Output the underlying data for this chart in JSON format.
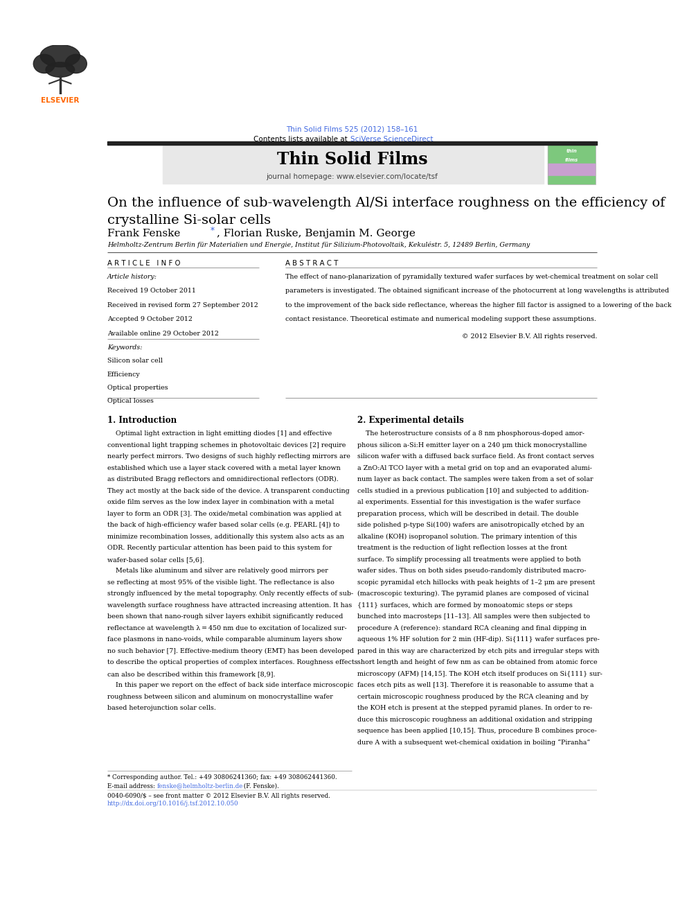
{
  "page_width": 9.92,
  "page_height": 13.23,
  "bg_color": "#ffffff",
  "top_citation": "Thin Solid Films 525 (2012) 158–161",
  "citation_color": "#4169E1",
  "journal_name": "Thin Solid Films",
  "journal_homepage": "journal homepage: www.elsevier.com/locate/tsf",
  "header_bg": "#e8e8e8",
  "paper_title": "On the influence of sub-wavelength Al/Si interface roughness on the efficiency of\ncrystalline Si-solar cells",
  "affiliation": "Helmholtz-Zentrum Berlin für Materialien und Energie, Institut für Silizium-Photovoltaik, Kekuléstr. 5, 12489 Berlin, Germany",
  "article_info_header": "A R T I C L E   I N F O",
  "abstract_header": "A B S T R A C T",
  "article_history_label": "Article history:",
  "received1": "Received 19 October 2011",
  "received2": "Received in revised form 27 September 2012",
  "accepted": "Accepted 9 October 2012",
  "available": "Available online 29 October 2012",
  "keywords_label": "Keywords:",
  "keywords": [
    "Silicon solar cell",
    "Efficiency",
    "Optical properties",
    "Optical losses"
  ],
  "abstract_text": "The effect of nano-planarization of pyramidally textured wafer surfaces by wet-chemical treatment on solar cell parameters is investigated. The obtained significant increase of the photocurrent at long wavelengths is attributed to the improvement of the back side reflectance, whereas the higher fill factor is assigned to a lowering of the back contact resistance. Theoretical estimate and numerical modeling support these assumptions.",
  "copyright": "© 2012 Elsevier B.V. All rights reserved.",
  "intro_heading": "1. Introduction",
  "exp_heading": "2. Experimental details",
  "footer_text1": "* Corresponding author. Tel.: +49 30806241360; fax: +49 308062441360.",
  "footer_text3": "0040-6090/$ – see front matter © 2012 Elsevier B.V. All rights reserved.",
  "footer_doi": "http://dx.doi.org/10.1016/j.tsf.2012.10.050",
  "footer_doi_color": "#4169E1",
  "elsevier_orange": "#FF6600",
  "blue_link": "#4169E1",
  "intro_lines": [
    "    Optimal light extraction in light emitting diodes [1] and effective",
    "conventional light trapping schemes in photovoltaic devices [2] require",
    "nearly perfect mirrors. Two designs of such highly reflecting mirrors are",
    "established which use a layer stack covered with a metal layer known",
    "as distributed Bragg reflectors and omnidirectional reflectors (ODR).",
    "They act mostly at the back side of the device. A transparent conducting",
    "oxide film serves as the low index layer in combination with a metal",
    "layer to form an ODR [3]. The oxide/metal combination was applied at",
    "the back of high-efficiency wafer based solar cells (e.g. PEARL [4]) to",
    "minimize recombination losses, additionally this system also acts as an",
    "ODR. Recently particular attention has been paid to this system for",
    "wafer-based solar cells [5,6].",
    "    Metals like aluminum and silver are relatively good mirrors per",
    "se reflecting at most 95% of the visible light. The reflectance is also",
    "strongly influenced by the metal topography. Only recently effects of sub-",
    "wavelength surface roughness have attracted increasing attention. It has",
    "been shown that nano-rough silver layers exhibit significantly reduced",
    "reflectance at wavelength λ = 450 nm due to excitation of localized sur-",
    "face plasmons in nano-voids, while comparable aluminum layers show",
    "no such behavior [7]. Effective-medium theory (EMT) has been developed",
    "to describe the optical properties of complex interfaces. Roughness effects",
    "can also be described within this framework [8,9].",
    "    In this paper we report on the effect of back side interface microscopic",
    "roughness between silicon and aluminum on monocrystalline wafer",
    "based heterojunction solar cells."
  ],
  "exp_lines": [
    "    The heterostructure consists of a 8 nm phosphorous-doped amor-",
    "phous silicon a-Si:H emitter layer on a 240 μm thick monocrystalline",
    "silicon wafer with a diffused back surface field. As front contact serves",
    "a ZnO:Al TCO layer with a metal grid on top and an evaporated alumi-",
    "num layer as back contact. The samples were taken from a set of solar",
    "cells studied in a previous publication [10] and subjected to addition-",
    "al experiments. Essential for this investigation is the wafer surface",
    "preparation process, which will be described in detail. The double",
    "side polished p-type Si(100) wafers are anisotropically etched by an",
    "alkaline (KOH) isopropanol solution. The primary intention of this",
    "treatment is the reduction of light reflection losses at the front",
    "surface. To simplify processing all treatments were applied to both",
    "wafer sides. Thus on both sides pseudo-randomly distributed macro-",
    "scopic pyramidal etch hillocks with peak heights of 1–2 μm are present",
    "(macroscopic texturing). The pyramid planes are composed of vicinal",
    "{111} surfaces, which are formed by monoatomic steps or steps",
    "bunched into macrosteps [11–13]. All samples were then subjected to",
    "procedure A (reference): standard RCA cleaning and final dipping in",
    "aqueous 1% HF solution for 2 min (HF-dip). Si{111} wafer surfaces pre-",
    "pared in this way are characterized by etch pits and irregular steps with",
    "short length and height of few nm as can be obtained from atomic force",
    "microscopy (AFM) [14,15]. The KOH etch itself produces on Si{111} sur-",
    "faces etch pits as well [13]. Therefore it is reasonable to assume that a",
    "certain microscopic roughness produced by the RCA cleaning and by",
    "the KOH etch is present at the stepped pyramid planes. In order to re-",
    "duce this microscopic roughness an additional oxidation and stripping",
    "sequence has been applied [10,15]. Thus, procedure B combines proce-",
    "dure A with a subsequent wet-chemical oxidation in boiling “Piranha”"
  ]
}
